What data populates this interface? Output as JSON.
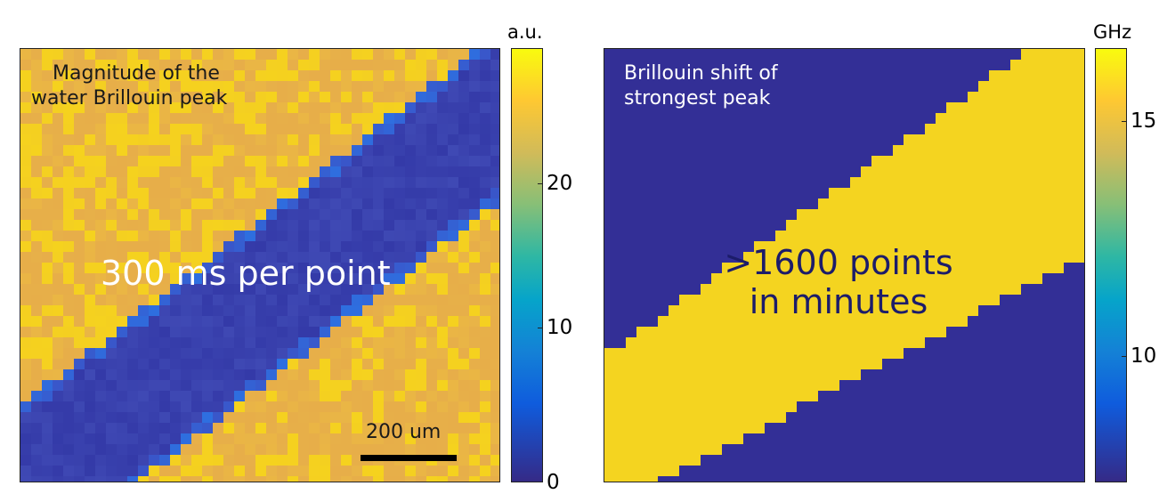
{
  "panels": [
    {
      "annotation_line1": "Magnitude of the",
      "annotation_line2": "water Brillouin peak",
      "overlay_text": "300 ms per point",
      "scalebar_label": "200 um",
      "colorbar_unit": "a.u.",
      "colorbar_ticks": [
        "0",
        "10",
        "20"
      ]
    },
    {
      "annotation_line1": "Brillouin shift of",
      "annotation_line2": "strongest peak",
      "overlay_line1": ">1600 points",
      "overlay_line2": "in minutes",
      "colorbar_unit": "GHz",
      "colorbar_ticks": [
        "10",
        "15"
      ]
    }
  ],
  "colors": {
    "parula_low": "#352a87",
    "parula_mid": "#1e9bb8",
    "parula_high": "#f9fb0e",
    "band_dark": "#3a3aa8",
    "yellow": "#f5d21e",
    "orange": "#e8b24a",
    "overlay_text_yellow": "#f7e01b",
    "overlay_text_white": "#ffffff"
  },
  "chart_data": [
    {
      "type": "heatmap",
      "title": "Magnitude of the water Brillouin peak",
      "colorbar_label": "a.u.",
      "colorbar_range": [
        0,
        28
      ],
      "colorbar_ticks": [
        0,
        10,
        20
      ],
      "colormap": "parula",
      "description_values": {
        "background_level": 24,
        "diagonal_band_level": 3
      },
      "scale_bar": "200 um"
    },
    {
      "type": "heatmap",
      "title": "Brillouin shift of strongest peak",
      "colorbar_label": "GHz",
      "colorbar_range": [
        8,
        16
      ],
      "colorbar_ticks": [
        10,
        15
      ],
      "colormap": "parula",
      "description_values": {
        "background_level": 8,
        "diagonal_band_level": 16
      }
    }
  ]
}
